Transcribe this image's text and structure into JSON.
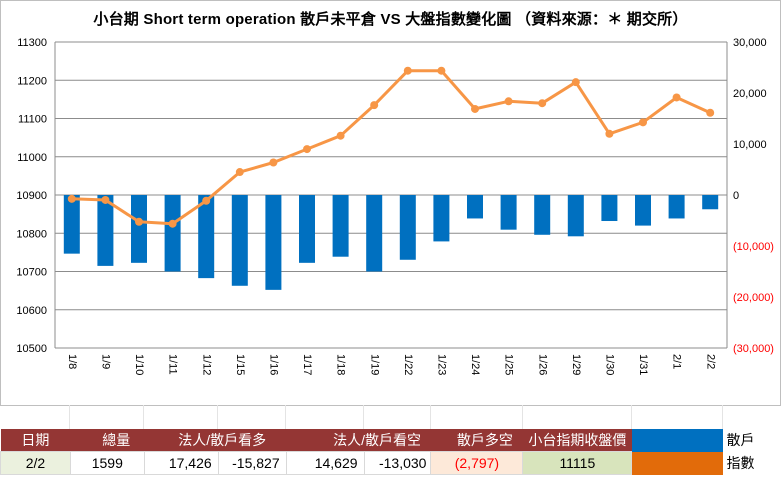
{
  "title": "小台期 Short term operation 散戶未平倉 VS 大盤指數變化圖  （資料來源：＊ 期交所）",
  "chart_data": {
    "type": "bar+line",
    "categories": [
      "1/8",
      "1/9",
      "1/10",
      "1/11",
      "1/12",
      "1/15",
      "1/16",
      "1/17",
      "1/18",
      "1/19",
      "1/22",
      "1/23",
      "1/24",
      "1/25",
      "1/26",
      "1/29",
      "1/30",
      "1/31",
      "2/1",
      "2/2"
    ],
    "series": [
      {
        "name": "散戶",
        "type": "bar",
        "axis": "right",
        "color": "#0070c0",
        "values": [
          -11500,
          -13900,
          -13300,
          -15000,
          -16300,
          -17800,
          -18600,
          -13300,
          -12100,
          -15000,
          -12700,
          -9100,
          -4600,
          -6800,
          -7800,
          -8100,
          -5100,
          -6000,
          -4600,
          -2797
        ]
      },
      {
        "name": "指數",
        "type": "line",
        "axis": "left",
        "color": "#f79646",
        "values": [
          10890,
          10887,
          10830,
          10825,
          10885,
          10960,
          10985,
          11020,
          11055,
          11135,
          11225,
          11225,
          11125,
          11145,
          11140,
          11195,
          11060,
          11090,
          11155,
          11115
        ]
      }
    ],
    "left_axis": {
      "min": 10500,
      "max": 11300,
      "step": 100,
      "ticks": [
        "10500",
        "10600",
        "10700",
        "10800",
        "10900",
        "11000",
        "11100",
        "11200",
        "11300"
      ]
    },
    "right_axis": {
      "min": -30000,
      "max": 30000,
      "step": 10000,
      "ticks": [
        "(30,000)",
        "(20,000)",
        "(10,000)",
        "0",
        "10,000",
        "20,000",
        "30,000"
      ],
      "negative_color": "#ff0000"
    },
    "grid": "horizontal"
  },
  "summary_table": {
    "headers": [
      "日期",
      "總量",
      "法人/散戶看多",
      "法人/散戶看空",
      "散戶多空",
      "小台指期收盤價"
    ],
    "row": {
      "date": "2/2",
      "total": "1599",
      "long_inst": "17,426",
      "long_retail": "-15,827",
      "short_inst": "14,629",
      "short_retail": "-13,030",
      "retail_net": "(2,797)",
      "close": "11115"
    },
    "legend": [
      {
        "label": "散戶",
        "color": "#0070c0"
      },
      {
        "label": "指數",
        "color": "#e26b0a"
      }
    ]
  }
}
